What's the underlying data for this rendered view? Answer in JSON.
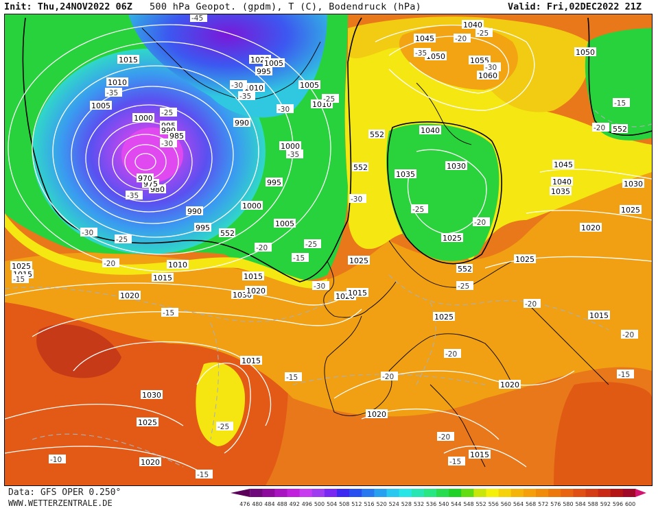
{
  "header": {
    "init": "Init: Thu,24NOV2022 06Z",
    "title": "500 hPa Geopot. (gpdm), T (C), Bodendruck (hPa)",
    "valid": "Valid: Fri,02DEC2022 21Z"
  },
  "footer": {
    "data_source": "Data: GFS OPER 0.250°",
    "website": "WWW.WETTERZENTRALE.DE"
  },
  "colors": {
    "purple": "#8a1ed8",
    "blue": "#3c7cf0",
    "cyan": "#2ad7c8",
    "green": "#1ed23c",
    "yellow": "#f5ec10",
    "orange": "#f0a010",
    "deep_orange": "#e66018",
    "red": "#c83018"
  },
  "scale": {
    "values": [
      "476",
      "480",
      "484",
      "488",
      "492",
      "496",
      "500",
      "504",
      "508",
      "512",
      "516",
      "520",
      "524",
      "528",
      "532",
      "536",
      "540",
      "544",
      "548",
      "552",
      "556",
      "560",
      "564",
      "568",
      "572",
      "576",
      "580",
      "584",
      "588",
      "592",
      "596",
      "600"
    ],
    "colors": [
      "#5a005a",
      "#6e0a7a",
      "#8c0a9c",
      "#a814c0",
      "#c020dc",
      "#c83cf0",
      "#a03cf0",
      "#7828f0",
      "#3c28f0",
      "#2850f0",
      "#2878f0",
      "#28a0f0",
      "#28c8f0",
      "#28e6e6",
      "#28e6b4",
      "#28e682",
      "#28dc50",
      "#20d228",
      "#64dc14",
      "#c8e60a",
      "#f5f00a",
      "#f5d20a",
      "#f5b40a",
      "#f5a00a",
      "#f08c0a",
      "#ec780c",
      "#e86410",
      "#e05014",
      "#d43c14",
      "#c82814",
      "#b41414",
      "#a00a28"
    ]
  },
  "pressure_labels": [
    "1015",
    "1010",
    "1005",
    "1000",
    "995",
    "990",
    "985",
    "980",
    "975",
    "970",
    "1020",
    "1005",
    "995",
    "990",
    "1010",
    "1000",
    "1005",
    "1010",
    "995",
    "1000",
    "1005",
    "995",
    "990",
    "1015",
    "1020",
    "1025",
    "1030",
    "1010",
    "1015",
    "1020",
    "1025",
    "1015",
    "1020",
    "1045",
    "1040",
    "1050",
    "1055",
    "1060",
    "1040",
    "1050",
    "1035",
    "1030",
    "1040",
    "1045",
    "1035",
    "1030",
    "1025",
    "1020",
    "1025",
    "1025",
    "1015",
    "1025",
    "1020",
    "1020",
    "1015",
    "1030",
    "1025",
    "1020",
    "1015",
    "1015"
  ],
  "temp_labels": [
    "-45",
    "-35",
    "-25",
    "-30",
    "-35",
    "-30",
    "-25",
    "-20",
    "-30",
    "-35",
    "-25",
    "-30",
    "-35",
    "-30",
    "-20",
    "-25",
    "-30",
    "-25",
    "-20",
    "-25",
    "-35",
    "-30",
    "-25",
    "-20",
    "-15",
    "-15",
    "-20",
    "-15",
    "-20",
    "-20",
    "-25",
    "-15",
    "-10",
    "-15",
    "-20",
    "-15",
    "-20",
    "-15",
    "-20",
    "-15"
  ],
  "line552": "552"
}
